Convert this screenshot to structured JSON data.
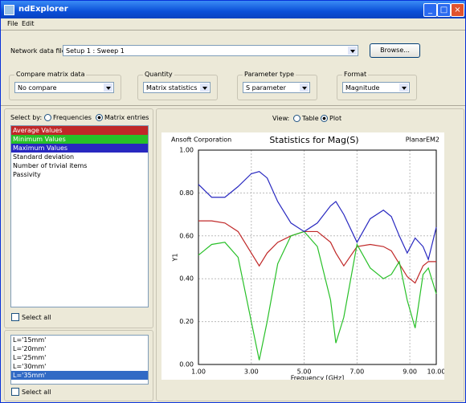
{
  "window": {
    "title": "ndExplorer"
  },
  "menu": [
    "File",
    "Edit"
  ],
  "network": {
    "label": "Network data file:",
    "value": "Setup 1 : Sweep 1",
    "button": "Browse..."
  },
  "groups": [
    {
      "label": "Compare matrix data",
      "value": "No compare"
    },
    {
      "label": "Quantity",
      "value": "Matrix statistics"
    },
    {
      "label": "Parameter type",
      "value": "S parameter"
    },
    {
      "label": "Format",
      "value": "Magnitude"
    }
  ],
  "select_by": {
    "label": "Select by:",
    "options": [
      "Frequencies",
      "Matrix entries"
    ]
  },
  "other_stats": [
    "Standard deviation",
    "Number of trivial items",
    "Passivity"
  ],
  "select_all": "Select all",
  "lengths": [
    "L='15mm'",
    "L='20mm'",
    "L='25mm'",
    "L='30mm'",
    "L='35mm'"
  ],
  "select_all_lengths": "Select all",
  "view": {
    "label": "View:",
    "options": [
      "Table",
      "Plot"
    ]
  },
  "chart_data": {
    "type": "line",
    "title": "Statistics for Mag(S)",
    "company": "Ansoft Corporation",
    "product": "PlanarEM2",
    "x_label": "Frequency [GHz]",
    "y_label": "Y1",
    "x": [
      1.0,
      1.5,
      2.0,
      2.5,
      3.0,
      3.3,
      3.6,
      4.0,
      4.5,
      5.0,
      5.5,
      6.0,
      6.2,
      6.5,
      7.0,
      7.5,
      8.0,
      8.3,
      8.6,
      8.9,
      9.2,
      9.5,
      9.7,
      10.0
    ],
    "series": [
      {
        "name": "Average Values",
        "color": "#c02828",
        "values": [
          0.67,
          0.67,
          0.66,
          0.62,
          0.52,
          0.46,
          0.52,
          0.57,
          0.6,
          0.62,
          0.62,
          0.57,
          0.52,
          0.46,
          0.55,
          0.56,
          0.55,
          0.53,
          0.47,
          0.41,
          0.38,
          0.46,
          0.48,
          0.48
        ]
      },
      {
        "name": "Minimum Values",
        "color": "#28c028",
        "values": [
          0.51,
          0.56,
          0.57,
          0.5,
          0.2,
          0.02,
          0.2,
          0.47,
          0.6,
          0.62,
          0.55,
          0.3,
          0.1,
          0.22,
          0.56,
          0.45,
          0.4,
          0.42,
          0.48,
          0.3,
          0.17,
          0.42,
          0.45,
          0.33
        ]
      },
      {
        "name": "Maximum Values",
        "color": "#2828c0",
        "values": [
          0.84,
          0.78,
          0.78,
          0.83,
          0.89,
          0.9,
          0.87,
          0.76,
          0.66,
          0.62,
          0.66,
          0.74,
          0.76,
          0.7,
          0.57,
          0.68,
          0.72,
          0.69,
          0.6,
          0.52,
          0.59,
          0.55,
          0.49,
          0.64
        ]
      }
    ],
    "xlim": [
      1,
      10
    ],
    "ylim": [
      0,
      1
    ],
    "xticks": [
      {
        "value": 1,
        "label": "1.00"
      },
      {
        "value": 3,
        "label": "3.00"
      },
      {
        "value": 5,
        "label": "5.00"
      },
      {
        "value": 7,
        "label": "7.00"
      },
      {
        "value": 9,
        "label": "9.00"
      },
      {
        "value": 10,
        "label": "10.00"
      }
    ],
    "yticks": [
      {
        "value": 0,
        "label": "0.00"
      },
      {
        "value": 0.2,
        "label": "0.20"
      },
      {
        "value": 0.4,
        "label": "0.40"
      },
      {
        "value": 0.6,
        "label": "0.60"
      },
      {
        "value": 0.8,
        "label": "0.80"
      },
      {
        "value": 1,
        "label": "1.00"
      }
    ],
    "grid": true
  }
}
